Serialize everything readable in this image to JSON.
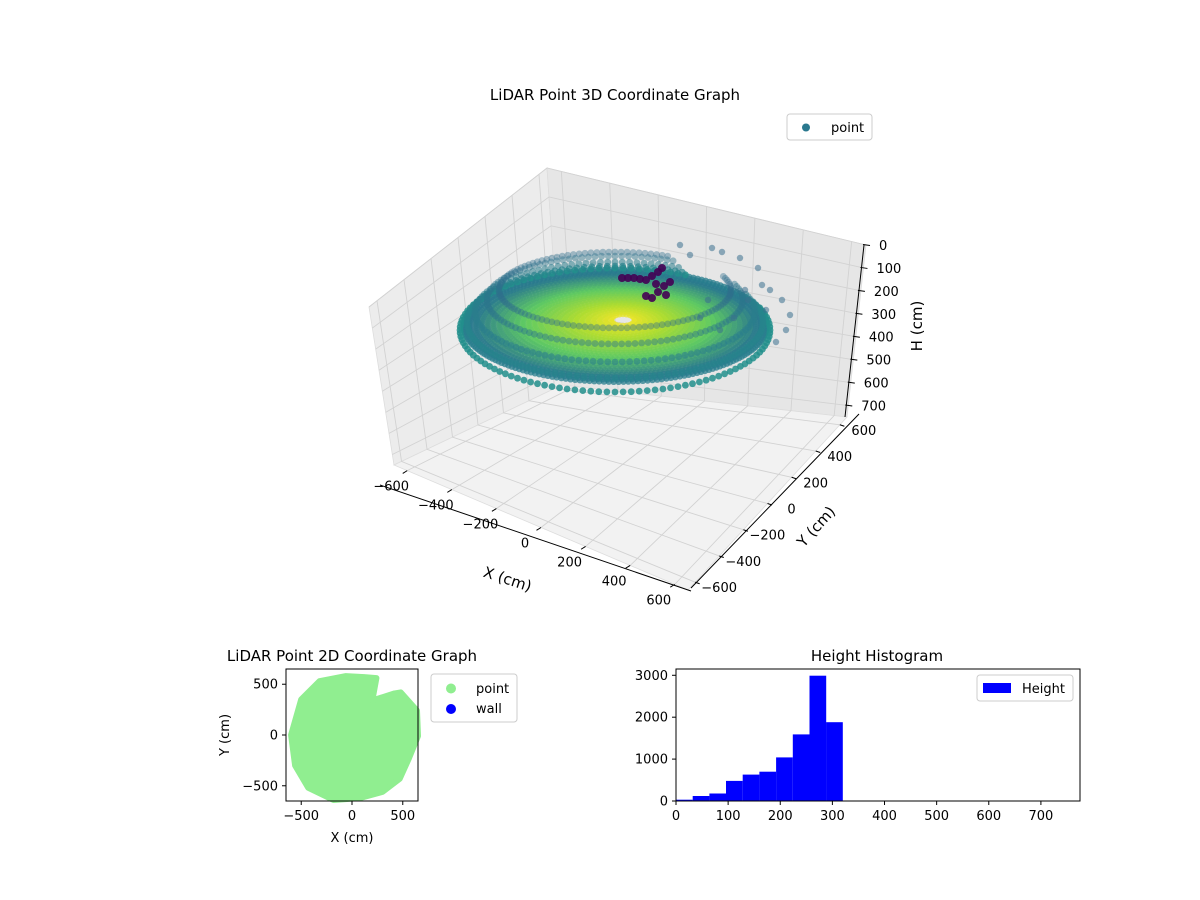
{
  "chart_data": [
    {
      "type": "scatter",
      "title": "LiDAR Point 3D Coordinate Graph",
      "xlabel": "X (cm)",
      "ylabel": "Y (cm)",
      "zlabel": "H (cm)",
      "x_ticks": [
        "−600",
        "−400",
        "−200",
        "0",
        "200",
        "400",
        "600"
      ],
      "y_ticks": [
        "−600",
        "−400",
        "−200",
        "0",
        "200",
        "400",
        "600"
      ],
      "z_ticks": [
        "0",
        "100",
        "200",
        "300",
        "400",
        "500",
        "600",
        "700"
      ],
      "xlim": [
        -650,
        650
      ],
      "ylim": [
        -650,
        650
      ],
      "zlim": [
        750,
        0
      ],
      "z_inverted": true,
      "colormap": "viridis",
      "legend": {
        "position": "top-right",
        "items": [
          {
            "label": "point",
            "color": "#2a788e"
          }
        ]
      },
      "grid": true
    },
    {
      "type": "scatter",
      "title": "LiDAR Point 2D Coordinate Graph",
      "xlabel": "X (cm)",
      "ylabel": "Y (cm)",
      "x_ticks": [
        "−500",
        "0",
        "500"
      ],
      "y_ticks": [
        "500",
        "0",
        "−500"
      ],
      "xlim": [
        -650,
        650
      ],
      "ylim": [
        -650,
        650
      ],
      "series": [
        {
          "name": "point",
          "color": "#90ee90"
        },
        {
          "name": "wall",
          "color": "#0000ff"
        }
      ],
      "legend": {
        "position": "outside-right"
      },
      "grid": false
    },
    {
      "type": "bar",
      "title": "Height Histogram",
      "x_ticks": [
        "0",
        "100",
        "200",
        "300",
        "400",
        "500",
        "600",
        "700"
      ],
      "y_ticks": [
        "0",
        "1000",
        "2000",
        "3000"
      ],
      "xlim": [
        0,
        775
      ],
      "ylim": [
        0,
        3150
      ],
      "bin_edges": [
        0,
        32,
        64,
        96,
        128,
        160,
        192,
        224,
        256,
        288,
        320
      ],
      "values": [
        30,
        120,
        180,
        480,
        630,
        700,
        1040,
        1590,
        2990,
        1880
      ],
      "series": [
        {
          "name": "Height",
          "color": "#0000ff"
        }
      ],
      "legend": {
        "position": "top-right"
      }
    }
  ]
}
